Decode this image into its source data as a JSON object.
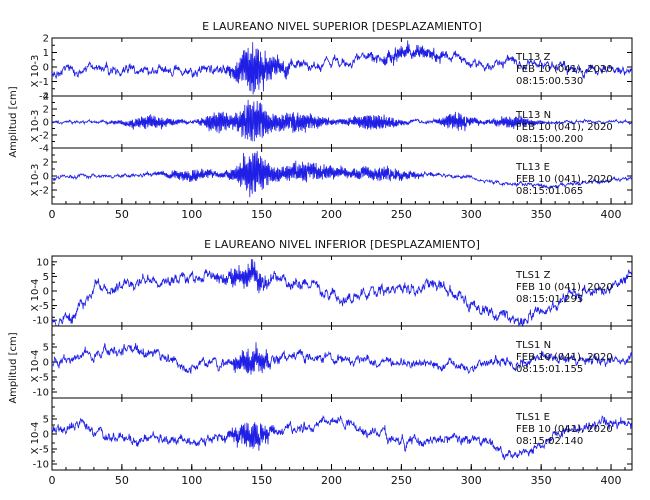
{
  "chart_data": [
    {
      "type": "line",
      "title": "E LAUREANO NIVEL SUPERIOR [DESPLAZAMIENTO]",
      "ylabel": "Amplitud [cm]",
      "xlim": [
        0,
        415
      ],
      "x_ticks": [
        "0",
        "50",
        "100",
        "150",
        "200",
        "250",
        "300",
        "350",
        "400"
      ],
      "panels": [
        {
          "scale_label": "X 10-3",
          "ylim": [
            -2,
            2
          ],
          "y_ticks": [
            "2",
            "1",
            "0",
            "-1",
            "-2"
          ],
          "info": [
            "TL13   Z",
            "FEB 10 (041), 2020",
            "08:15:00.530"
          ],
          "series": {
            "noise": 0.35,
            "bursts": [
              {
                "x": 143,
                "amp": 1.6,
                "w": 12
              },
              {
                "x": 160,
                "amp": 0.5,
                "w": 15
              },
              {
                "x": 255,
                "amp": 0.4,
                "w": 25
              }
            ],
            "drift": [
              [
                0,
                -0.3
              ],
              [
                60,
                -0.2
              ],
              [
                130,
                -0.3
              ],
              [
                180,
                0.2
              ],
              [
                220,
                0.5
              ],
              [
                260,
                1.0
              ],
              [
                300,
                0.3
              ],
              [
                350,
                0.0
              ],
              [
                415,
                -0.3
              ]
            ],
            "seed": 11
          }
        },
        {
          "scale_label": "X 10-3",
          "ylim": [
            -4,
            4
          ],
          "y_ticks": [
            "4",
            "2",
            "0",
            "-2",
            "-4"
          ],
          "info": [
            "TL13   N",
            "FEB 10 (041), 2020",
            "08:15:00.200"
          ],
          "series": {
            "noise": 0.25,
            "bursts": [
              {
                "x": 70,
                "amp": 1.0,
                "w": 20
              },
              {
                "x": 118,
                "amp": 1.8,
                "w": 10
              },
              {
                "x": 143,
                "amp": 3.6,
                "w": 12
              },
              {
                "x": 175,
                "amp": 1.6,
                "w": 20
              },
              {
                "x": 230,
                "amp": 1.2,
                "w": 20
              },
              {
                "x": 290,
                "amp": 1.4,
                "w": 12
              },
              {
                "x": 330,
                "amp": 1.0,
                "w": 15
              }
            ],
            "drift": [
              [
                0,
                0
              ],
              [
                415,
                0
              ]
            ],
            "seed": 23
          }
        },
        {
          "scale_label": "X 10-3",
          "ylim": [
            -4,
            4
          ],
          "y_ticks": [
            "2",
            "0",
            "-2"
          ],
          "info": [
            "TL13   E",
            "FEB 10 (041), 2020",
            "08:15:01.065"
          ],
          "series": {
            "noise": 0.3,
            "bursts": [
              {
                "x": 100,
                "amp": 0.8,
                "w": 20
              },
              {
                "x": 143,
                "amp": 3.2,
                "w": 12
              },
              {
                "x": 180,
                "amp": 1.4,
                "w": 25
              },
              {
                "x": 235,
                "amp": 1.0,
                "w": 25
              }
            ],
            "drift": [
              [
                0,
                -0.2
              ],
              [
                100,
                0.2
              ],
              [
                200,
                0.6
              ],
              [
                290,
                0.0
              ],
              [
                320,
                -1.0
              ],
              [
                360,
                -1.4
              ],
              [
                415,
                -0.3
              ]
            ],
            "seed": 37
          }
        }
      ]
    },
    {
      "type": "line",
      "title": "E LAUREANO NIVEL INFERIOR [DESPLAZAMIENTO]",
      "ylabel": "Amplitud [cm]",
      "xlim": [
        0,
        415
      ],
      "x_ticks": [
        "0",
        "50",
        "100",
        "150",
        "200",
        "250",
        "300",
        "350",
        "400"
      ],
      "panels": [
        {
          "scale_label": "X 10-4",
          "ylim": [
            -12,
            12
          ],
          "y_ticks": [
            "10",
            "5",
            "0",
            "-5",
            "-10"
          ],
          "info": [
            "TLS1   Z",
            "FEB 10 (041), 2020",
            "08:15:01.295"
          ],
          "series": {
            "noise": 2.2,
            "bursts": [
              {
                "x": 140,
                "amp": 4.0,
                "w": 15
              }
            ],
            "drift": [
              [
                0,
                -10
              ],
              [
                15,
                -9
              ],
              [
                30,
                0
              ],
              [
                60,
                3
              ],
              [
                100,
                4
              ],
              [
                140,
                5
              ],
              [
                180,
                3
              ],
              [
                210,
                -3
              ],
              [
                230,
                0
              ],
              [
                270,
                2
              ],
              [
                310,
                -6
              ],
              [
                340,
                -10
              ],
              [
                360,
                -4
              ],
              [
                400,
                2
              ],
              [
                415,
                5
              ]
            ],
            "seed": 53
          }
        },
        {
          "scale_label": "X 10-4",
          "ylim": [
            -12,
            12
          ],
          "y_ticks": [
            "5",
            "0",
            "-5",
            "-10"
          ],
          "info": [
            "TLS1   N",
            "FEB 10 (041), 2020",
            "08:15:01.155"
          ],
          "series": {
            "noise": 1.8,
            "bursts": [
              {
                "x": 143,
                "amp": 5.0,
                "w": 12
              }
            ],
            "drift": [
              [
                0,
                0
              ],
              [
                40,
                4
              ],
              [
                80,
                3
              ],
              [
                100,
                -2
              ],
              [
                130,
                0
              ],
              [
                180,
                2
              ],
              [
                230,
                0
              ],
              [
                300,
                -1
              ],
              [
                360,
                1
              ],
              [
                415,
                0
              ]
            ],
            "seed": 67
          }
        },
        {
          "scale_label": "X 10-4",
          "ylim": [
            -12,
            12
          ],
          "y_ticks": [
            "5",
            "0",
            "-5",
            "-10"
          ],
          "info": [
            "TLS1   E",
            "FEB 10 (041), 2020",
            "08:15:02.140"
          ],
          "series": {
            "noise": 1.8,
            "bursts": [
              {
                "x": 143,
                "amp": 5.0,
                "w": 15
              }
            ],
            "drift": [
              [
                0,
                2
              ],
              [
                20,
                3
              ],
              [
                40,
                -1
              ],
              [
                100,
                -3
              ],
              [
                150,
                0
              ],
              [
                200,
                5
              ],
              [
                250,
                -2
              ],
              [
                300,
                -1
              ],
              [
                330,
                -8
              ],
              [
                360,
                0
              ],
              [
                400,
                4
              ],
              [
                415,
                3
              ]
            ],
            "seed": 79
          }
        }
      ]
    }
  ]
}
